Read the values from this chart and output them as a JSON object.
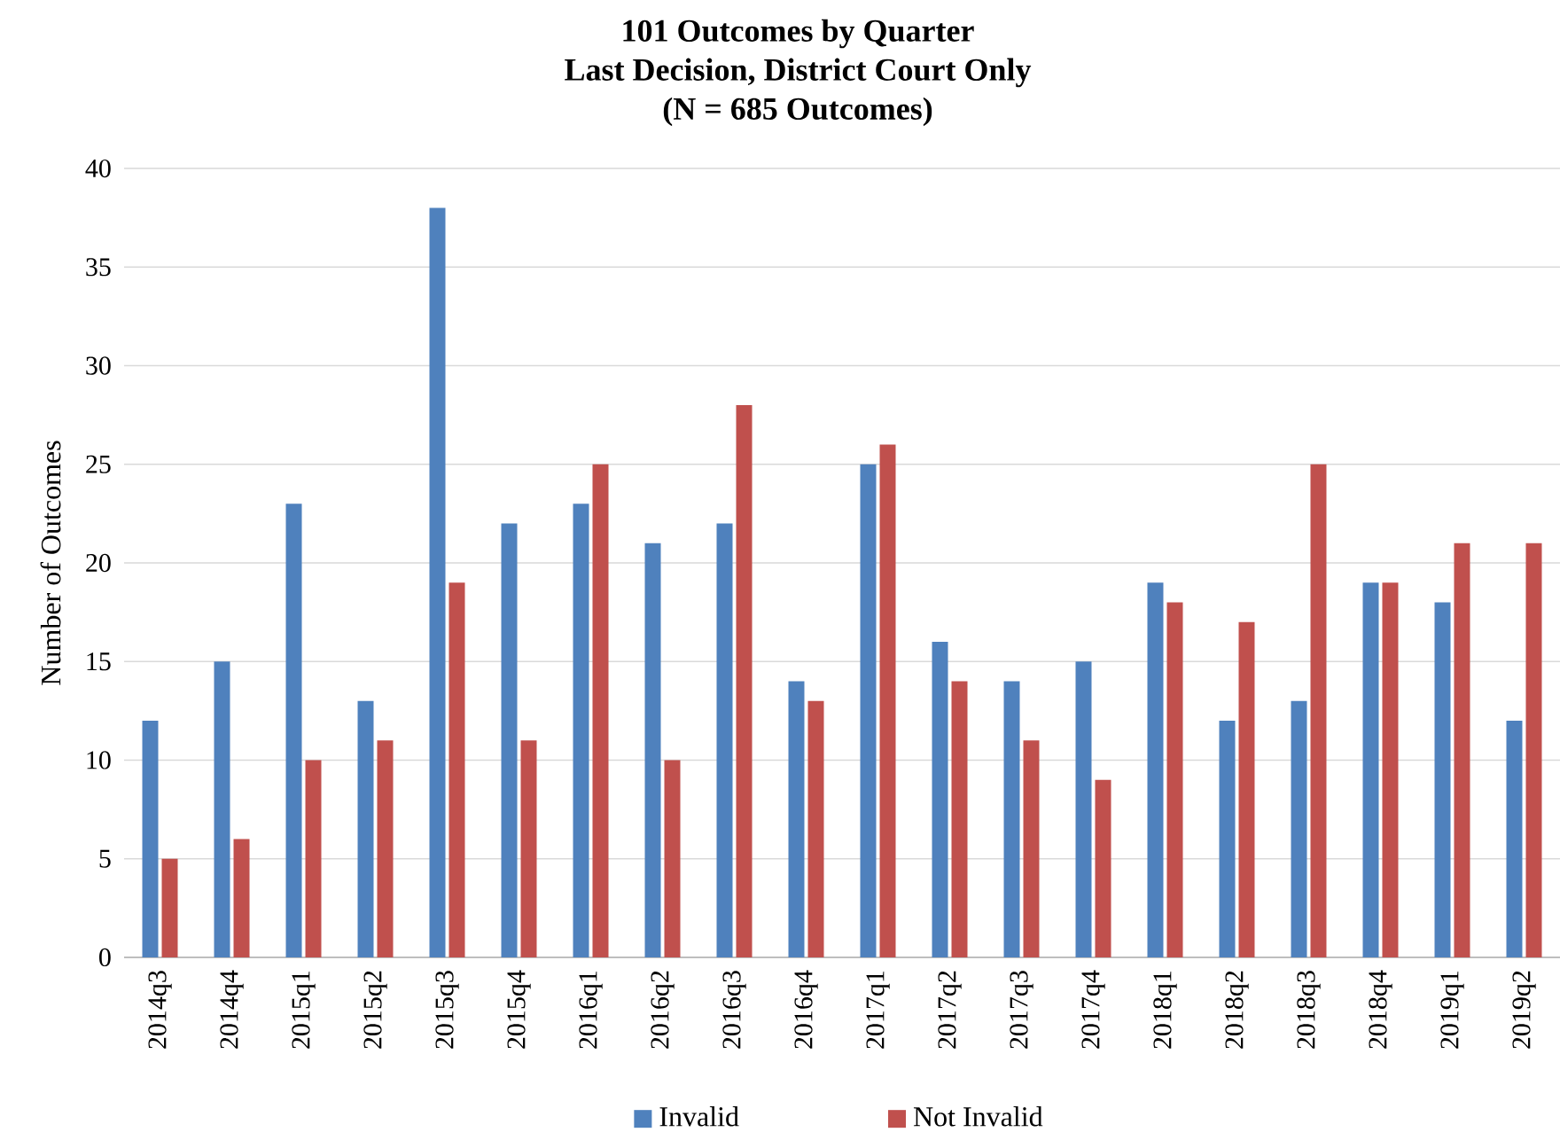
{
  "chart_data": {
    "type": "bar",
    "title": "101 Outcomes by Quarter",
    "subtitle": "Last Decision, District Court Only",
    "annotations": [
      "(N = 685 Outcomes)"
    ],
    "ylabel": "Number of Outcomes",
    "categories": [
      "2014q3",
      "2014q4",
      "2015q1",
      "2015q2",
      "2015q3",
      "2015q4",
      "2016q1",
      "2016q2",
      "2016q3",
      "2016q4",
      "2017q1",
      "2017q2",
      "2017q3",
      "2017q4",
      "2018q1",
      "2018q2",
      "2018q3",
      "2018q4",
      "2019q1",
      "2019q2"
    ],
    "series": [
      {
        "name": "Invalid",
        "color": "#4f81bd",
        "values": [
          12,
          15,
          23,
          13,
          38,
          22,
          23,
          21,
          22,
          14,
          25,
          16,
          14,
          15,
          19,
          12,
          13,
          19,
          18,
          12
        ]
      },
      {
        "name": "Not Invalid",
        "color": "#c0504d",
        "values": [
          5,
          6,
          10,
          11,
          19,
          11,
          25,
          10,
          28,
          13,
          26,
          14,
          11,
          9,
          18,
          17,
          25,
          19,
          21,
          21
        ]
      }
    ],
    "ylim": [
      0,
      40
    ],
    "yticks": [
      0,
      5,
      10,
      15,
      20,
      25,
      30,
      35,
      40
    ],
    "grid": "y",
    "legend": "bottom"
  }
}
